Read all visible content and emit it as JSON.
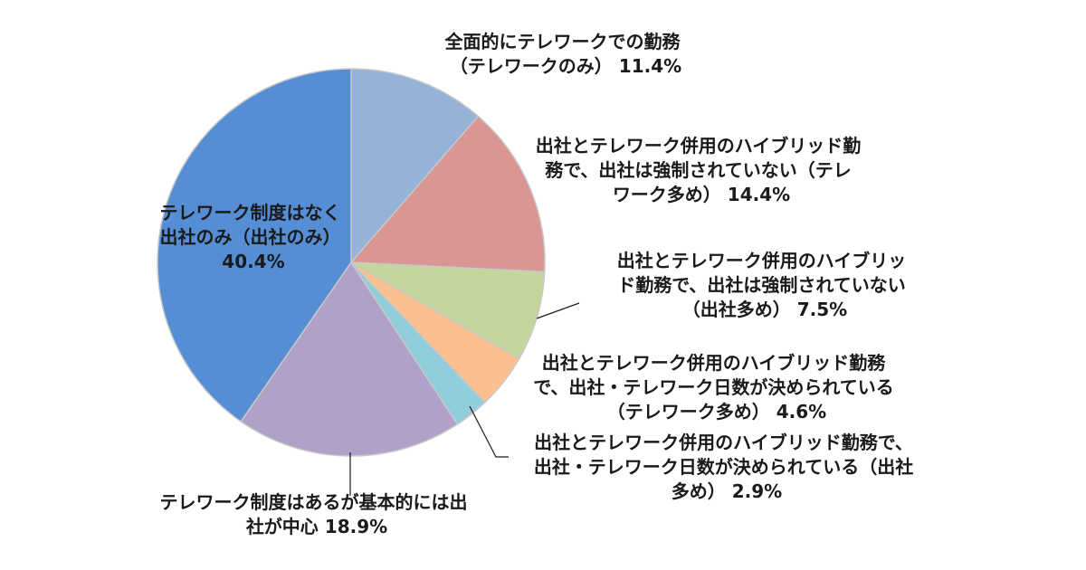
{
  "chart_data": {
    "type": "pie",
    "start_angle_deg": 0,
    "direction": "clockwise",
    "slices": [
      {
        "label_lines": [
          "全面的にテレワークでの勤務",
          "（テレワークのみ） 11.4%"
        ],
        "value": 11.4,
        "color": "#95b3d7"
      },
      {
        "label_lines": [
          "出社とテレワーク併用のハイブリッド勤",
          "務で、出社は強制されていない（テレ",
          "ワーク多め） 14.4%"
        ],
        "value": 14.4,
        "color": "#d99694"
      },
      {
        "label_lines": [
          "出社とテレワーク併用のハイブリッ",
          "ド勤務で、出社は強制されていない",
          "（出社多め） 7.5%"
        ],
        "value": 7.5,
        "color": "#c3d69b"
      },
      {
        "label_lines": [
          "出社とテレワーク併用のハイブリッド勤務",
          "で、出社・テレワーク日数が決められている",
          "（テレワーク多め） 4.6%"
        ],
        "value": 4.6,
        "color": "#fac090"
      },
      {
        "label_lines": [
          "出社とテレワーク併用のハイブリッド勤務で、",
          "出社・テレワーク日数が決められている（出社",
          "多め） 2.9%"
        ],
        "value": 2.9,
        "color": "#92cddc"
      },
      {
        "label_lines": [
          "テレワーク制度はあるが基本的には出",
          "社が中心 18.9%"
        ],
        "value": 18.9,
        "color": "#b1a0c7"
      },
      {
        "label_lines": [
          "テレワーク制度はなく",
          "出社のみ（出社のみ）",
          "40.4%"
        ],
        "value": 40.4,
        "color": "#558ed5"
      }
    ]
  }
}
